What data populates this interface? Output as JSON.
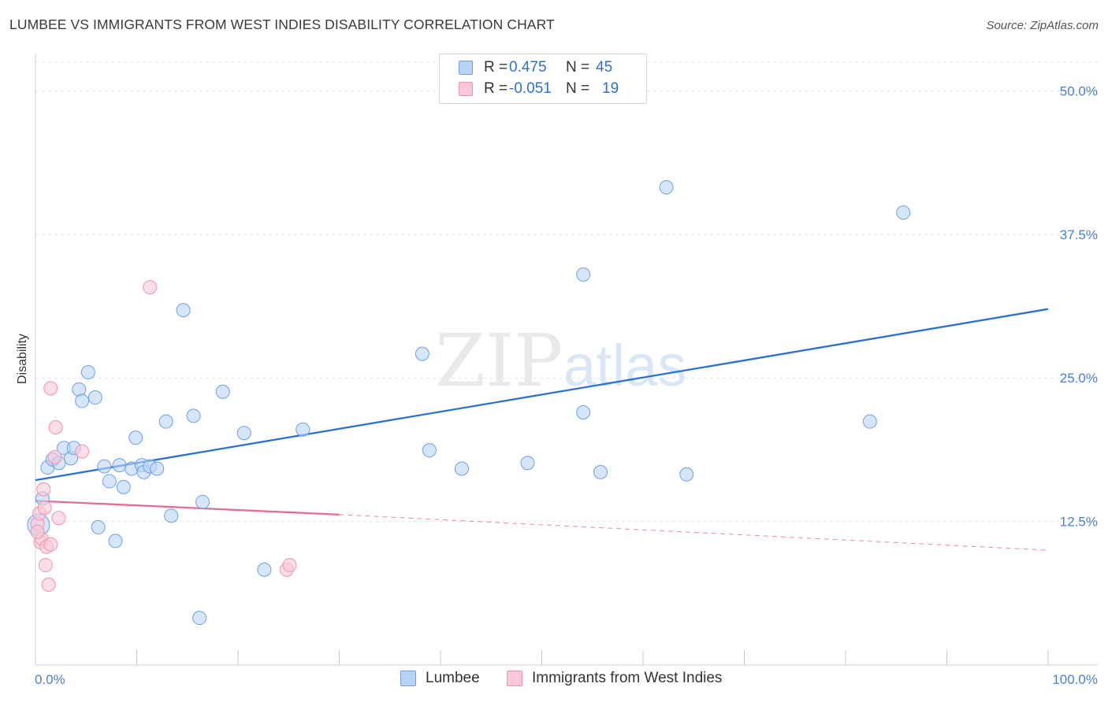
{
  "header": {
    "title": "LUMBEE VS IMMIGRANTS FROM WEST INDIES DISABILITY CORRELATION CHART",
    "source": "Source: ZipAtlas.com"
  },
  "legend_top": {
    "rows": [
      {
        "r_label": "R =",
        "r_value": "0.475",
        "n_label": "N =",
        "n_value": "45"
      },
      {
        "r_label": "R =",
        "r_value": "-0.051",
        "n_label": "N =",
        "n_value": "19"
      }
    ]
  },
  "legend_bottom": {
    "items": [
      {
        "label": "Lumbee"
      },
      {
        "label": "Immigrants from West Indies"
      }
    ]
  },
  "watermark": {
    "part1": "ZIP",
    "part2": "atlas"
  },
  "colors": {
    "blue_fill": "#b9d3f7",
    "blue_stroke": "#6f9fe0",
    "blue_line": "#2b70d4",
    "pink_fill": "#fac8d6",
    "pink_stroke": "#ec93ae",
    "pink_line": "#e36b96",
    "grid": "#e2e2e2",
    "tick_text": "#4a7fd0"
  },
  "chart_data": {
    "type": "scatter",
    "title": "LUMBEE VS IMMIGRANTS FROM WEST INDIES DISABILITY CORRELATION CHART",
    "xlabel": "",
    "ylabel": "Disability",
    "xlim": [
      0,
      100
    ],
    "ylim": [
      0,
      52.5
    ],
    "x_tick_labels": [
      "0.0%",
      "100.0%"
    ],
    "y_ticks": [
      12.5,
      25.0,
      37.5,
      50.0
    ],
    "y_tick_labels": [
      "12.5%",
      "25.0%",
      "37.5%",
      "50.0%"
    ],
    "grid": true,
    "legend_position": "top-center",
    "series": [
      {
        "name": "Lumbee",
        "color": "#b9d3f7",
        "points": [
          [
            0.3,
            12.2
          ],
          [
            0.7,
            14.5
          ],
          [
            1.2,
            17.2
          ],
          [
            1.7,
            17.9
          ],
          [
            2.3,
            17.6
          ],
          [
            2.8,
            18.9
          ],
          [
            3.5,
            18.0
          ],
          [
            3.8,
            18.9
          ],
          [
            4.3,
            24.0
          ],
          [
            4.6,
            23.0
          ],
          [
            5.2,
            25.5
          ],
          [
            5.9,
            23.3
          ],
          [
            6.2,
            12.0
          ],
          [
            6.8,
            17.3
          ],
          [
            7.3,
            16.0
          ],
          [
            7.9,
            10.8
          ],
          [
            8.3,
            17.4
          ],
          [
            8.7,
            15.5
          ],
          [
            9.5,
            17.1
          ],
          [
            9.9,
            19.8
          ],
          [
            10.5,
            17.4
          ],
          [
            10.7,
            16.8
          ],
          [
            11.3,
            17.3
          ],
          [
            12.0,
            17.1
          ],
          [
            12.9,
            21.2
          ],
          [
            13.4,
            13.0
          ],
          [
            14.6,
            30.9
          ],
          [
            15.6,
            21.7
          ],
          [
            16.2,
            4.1
          ],
          [
            16.5,
            14.2
          ],
          [
            18.5,
            23.8
          ],
          [
            20.6,
            20.2
          ],
          [
            22.6,
            8.3
          ],
          [
            26.4,
            20.5
          ],
          [
            38.2,
            27.1
          ],
          [
            38.9,
            18.7
          ],
          [
            42.1,
            17.1
          ],
          [
            48.6,
            17.6
          ],
          [
            54.1,
            22.0
          ],
          [
            54.1,
            34.0
          ],
          [
            55.8,
            16.8
          ],
          [
            62.3,
            41.6
          ],
          [
            64.3,
            16.6
          ],
          [
            82.4,
            21.2
          ],
          [
            85.7,
            39.4
          ]
        ]
      },
      {
        "name": "Immigrants from West Indies",
        "color": "#fac8d6",
        "points": [
          [
            0.2,
            12.3
          ],
          [
            0.4,
            13.2
          ],
          [
            0.5,
            10.7
          ],
          [
            0.6,
            11.0
          ],
          [
            0.8,
            15.3
          ],
          [
            0.9,
            13.7
          ],
          [
            1.0,
            8.7
          ],
          [
            1.1,
            10.3
          ],
          [
            1.3,
            7.0
          ],
          [
            1.5,
            10.5
          ],
          [
            1.5,
            24.1
          ],
          [
            1.9,
            18.1
          ],
          [
            2.0,
            20.7
          ],
          [
            2.3,
            12.8
          ],
          [
            4.6,
            18.6
          ],
          [
            11.3,
            32.9
          ],
          [
            24.8,
            8.3
          ],
          [
            25.1,
            8.7
          ],
          [
            0.2,
            11.6
          ]
        ]
      }
    ],
    "trend_lines": [
      {
        "series": "Lumbee",
        "x": [
          0,
          100
        ],
        "y": [
          16.1,
          31.0
        ]
      },
      {
        "series": "Immigrants from West Indies",
        "x": [
          0,
          30
        ],
        "y": [
          14.3,
          13.1
        ],
        "dashed_extension": {
          "x": [
            30,
            100
          ],
          "y": [
            13.1,
            10.0
          ]
        }
      }
    ]
  }
}
